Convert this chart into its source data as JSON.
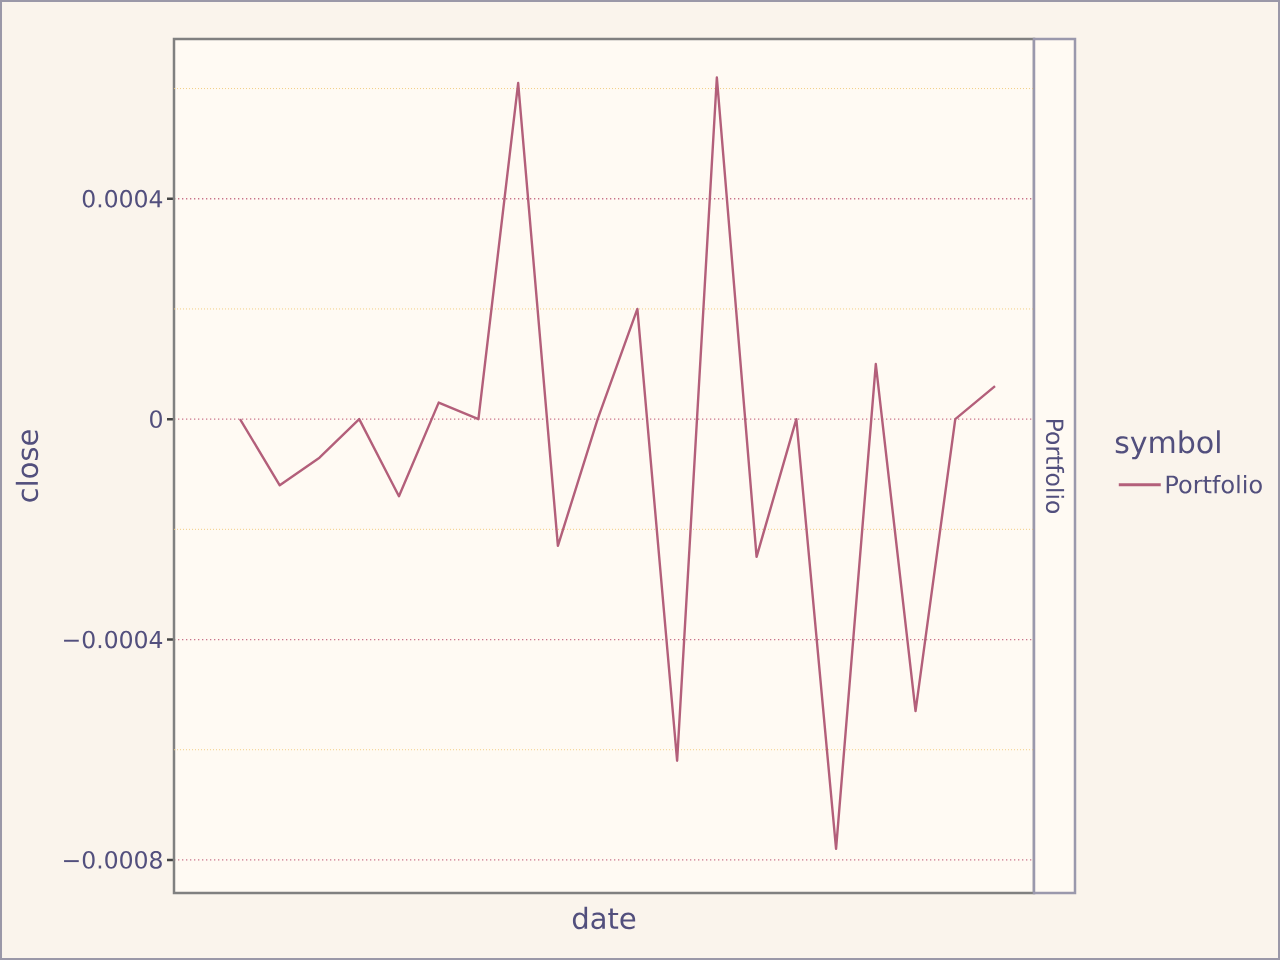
{
  "chart_data": {
    "type": "line",
    "title": "Portfolio",
    "xlabel": "date",
    "ylabel": "close",
    "legend_title": "symbol",
    "categories": [
      null,
      null,
      null,
      null,
      null,
      null,
      null,
      null,
      null,
      null,
      null,
      null,
      null,
      null,
      null,
      null,
      null,
      null,
      null,
      null
    ],
    "series": [
      {
        "name": "Portfolio",
        "color": "#b35f7a",
        "values": [
          0,
          -0.00012,
          -7e-05,
          0,
          -0.00014,
          3e-05,
          0,
          0.00061,
          -0.00023,
          0,
          0.0002,
          -0.00062,
          0.00062,
          -0.00025,
          0,
          -0.00078,
          0.0001,
          -0.00053,
          0,
          6e-05
        ]
      }
    ],
    "ylim": [
      -0.00086,
      0.00069
    ],
    "yticks": [
      {
        "value": -0.0008,
        "label": "−0.0008"
      },
      {
        "value": -0.0006,
        "label": null
      },
      {
        "value": -0.0004,
        "label": "−0.0004"
      },
      {
        "value": -0.0002,
        "label": null
      },
      0,
      {
        "value": 0.0002,
        "label": null
      },
      0.0004,
      {
        "value": 0.0006,
        "label": null
      }
    ],
    "grid": "y",
    "legend": "right",
    "tick_labels": "y",
    "line_style": "solid"
  }
}
